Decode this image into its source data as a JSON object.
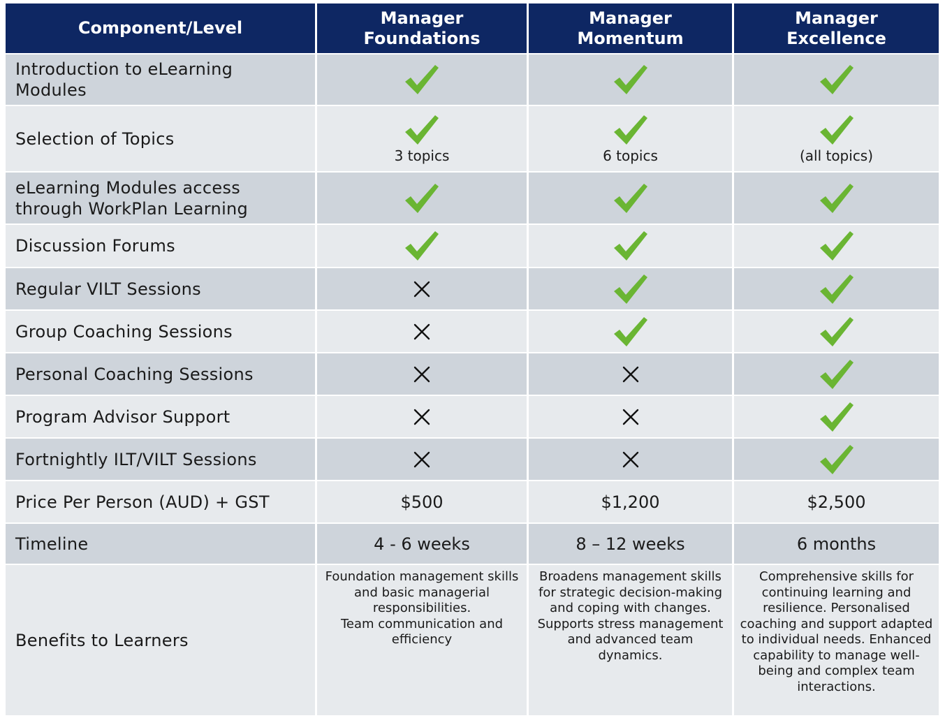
{
  "header": {
    "component": "Component/Level",
    "col1": "Manager\nFoundations",
    "col2": "Manager\nMomentum",
    "col3": "Manager\nExcellence"
  },
  "colors": {
    "header_bg": "#0e2763",
    "check": "#6ab533",
    "row_dark": "#ced4db",
    "row_light": "#e7eaed"
  },
  "rows": [
    {
      "label": "Introduction to eLearning\nModules",
      "values": [
        {
          "icon": "check-icon"
        },
        {
          "icon": "check-icon"
        },
        {
          "icon": "check-icon"
        }
      ]
    },
    {
      "label": "Selection of Topics",
      "values": [
        {
          "icon": "check-icon",
          "text": "3 topics"
        },
        {
          "icon": "check-icon",
          "text": "6 topics"
        },
        {
          "icon": "check-icon",
          "text": "(all topics)"
        }
      ]
    },
    {
      "label": "eLearning Modules access\nthrough WorkPlan Learning",
      "values": [
        {
          "icon": "check-icon"
        },
        {
          "icon": "check-icon"
        },
        {
          "icon": "check-icon"
        }
      ]
    },
    {
      "label": "Discussion Forums",
      "values": [
        {
          "icon": "check-icon"
        },
        {
          "icon": "check-icon"
        },
        {
          "icon": "check-icon"
        }
      ]
    },
    {
      "label": "Regular VILT Sessions",
      "values": [
        {
          "icon": "cross-icon"
        },
        {
          "icon": "check-icon"
        },
        {
          "icon": "check-icon"
        }
      ]
    },
    {
      "label": "Group Coaching Sessions",
      "values": [
        {
          "icon": "cross-icon"
        },
        {
          "icon": "check-icon"
        },
        {
          "icon": "check-icon"
        }
      ]
    },
    {
      "label": "Personal Coaching Sessions",
      "values": [
        {
          "icon": "cross-icon"
        },
        {
          "icon": "cross-icon"
        },
        {
          "icon": "check-icon"
        }
      ]
    },
    {
      "label": "Program Advisor Support",
      "values": [
        {
          "icon": "cross-icon"
        },
        {
          "icon": "cross-icon"
        },
        {
          "icon": "check-icon"
        }
      ]
    },
    {
      "label": "Fortnightly ILT/VILT Sessions",
      "values": [
        {
          "icon": "cross-icon"
        },
        {
          "icon": "cross-icon"
        },
        {
          "icon": "check-icon"
        }
      ]
    },
    {
      "label": "Price Per Person (AUD) + GST",
      "values": [
        {
          "text": "$500"
        },
        {
          "text": "$1,200"
        },
        {
          "text": "$2,500"
        }
      ]
    },
    {
      "label": "Timeline",
      "values": [
        {
          "text": "4 - 6 weeks"
        },
        {
          "text": "8 – 12 weeks"
        },
        {
          "text": "6 months"
        }
      ]
    },
    {
      "label": "Benefits to Learners",
      "values": [
        {
          "text": "Foundation management skills and basic managerial responsibilities.\nTeam communication and efficiency"
        },
        {
          "text": "Broadens management skills for strategic decision-making and coping with changes. Supports stress management and advanced team dynamics."
        },
        {
          "text": "Comprehensive skills for continuing learning and resilience. Personalised coaching and support adapted to individual needs. Enhanced capability to manage well-being and complex team interactions."
        }
      ]
    }
  ]
}
